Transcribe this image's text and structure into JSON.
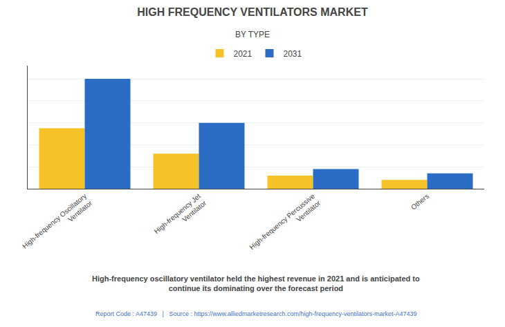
{
  "chart_data": {
    "type": "bar",
    "title": "HIGH FREQUENCY VENTILATORS MARKET",
    "subtitle": "BY TYPE",
    "categories": [
      "High-frequency Oscillatory\nVentilator",
      "High-frequency Jet\nVentilator",
      "High-frequency Percussive\nVentilator",
      "Others"
    ],
    "series": [
      {
        "name": "2021",
        "color": "#F5C327",
        "values": [
          55,
          32,
          12,
          8
        ]
      },
      {
        "name": "2031",
        "color": "#2B6CC4",
        "values": [
          100,
          60,
          18,
          14
        ]
      }
    ],
    "ylim": [
      0,
      112
    ],
    "yticks": [
      0,
      20,
      40,
      60,
      80,
      100
    ],
    "grid": true,
    "tick_labels": "x",
    "legend": "top",
    "annotations": [
      "High-frequency oscillatory ventilator held the highest revenue in 2021 and is anticipated to\ncontinue its dominating over the forecast period",
      "Report Code : A47439   |   Source : https://www.alliedmarketresearch.com/high-frequency-ventilators-market-A47439"
    ]
  }
}
